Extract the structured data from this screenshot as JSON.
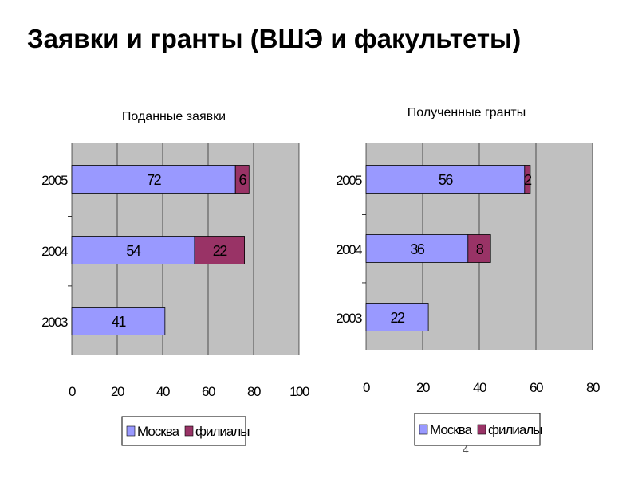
{
  "page": {
    "title": "Заявки и гранты (ВШЭ и факультеты)",
    "page_number": "4"
  },
  "colors": {
    "moscow": "#9999ff",
    "branches": "#993366",
    "plot_background": "#c0c0c0",
    "grid": "#000000"
  },
  "chart_data": [
    {
      "type": "bar",
      "orientation": "horizontal",
      "stacked": true,
      "title": "Поданные заявки",
      "categories": [
        "2005",
        "2004",
        "2003"
      ],
      "series": [
        {
          "name": "Москва",
          "values": [
            72,
            54,
            41
          ],
          "labels": [
            "72",
            "54",
            "41"
          ]
        },
        {
          "name": "филиалы",
          "values": [
            6,
            22,
            0
          ],
          "labels": [
            "6",
            "22",
            ""
          ]
        }
      ],
      "xlim": [
        0,
        100
      ],
      "xticks": [
        "0",
        "20",
        "40",
        "60",
        "80",
        "100"
      ],
      "grid": true,
      "legend_position": "bottom"
    },
    {
      "type": "bar",
      "orientation": "horizontal",
      "stacked": true,
      "title": "Полученные гранты",
      "categories": [
        "2005",
        "2004",
        "2003"
      ],
      "series": [
        {
          "name": "Москва",
          "values": [
            56,
            36,
            22
          ],
          "labels": [
            "56",
            "36",
            "22"
          ]
        },
        {
          "name": "филиалы",
          "values": [
            2,
            8,
            0
          ],
          "labels": [
            "2",
            "8",
            ""
          ]
        }
      ],
      "xlim": [
        0,
        80
      ],
      "xticks": [
        "0",
        "20",
        "40",
        "60",
        "80"
      ],
      "grid": true,
      "legend_position": "bottom"
    }
  ]
}
